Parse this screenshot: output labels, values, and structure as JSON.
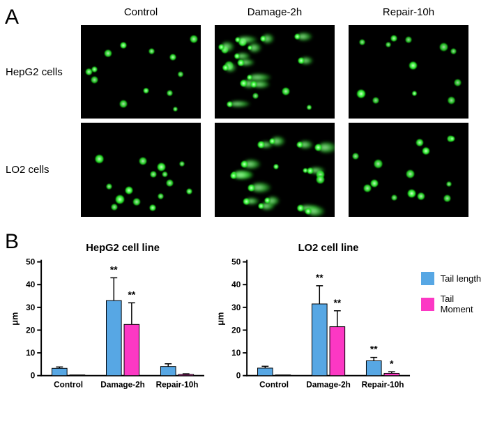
{
  "panel_a": {
    "label": "A",
    "columns": [
      "Control",
      "Damage-2h",
      "Repair-10h"
    ],
    "rows": [
      {
        "label": "HepG2 cells",
        "images": [
          {
            "name": "hepg2-control",
            "type": "round",
            "cell_count": 13
          },
          {
            "name": "hepg2-damage-2h",
            "type": "comet",
            "cell_count": 19
          },
          {
            "name": "hepg2-repair-10h",
            "type": "round",
            "cell_count": 12
          }
        ]
      },
      {
        "label": "LO2 cells",
        "images": [
          {
            "name": "lo2-control",
            "type": "round",
            "cell_count": 15
          },
          {
            "name": "lo2-damage-2h",
            "type": "comet",
            "cell_count": 18
          },
          {
            "name": "lo2-repair-10h",
            "type": "round",
            "cell_count": 14
          }
        ]
      }
    ]
  },
  "panel_b": {
    "label": "B",
    "legend": [
      {
        "label": "Tail length",
        "color": "#57a7e4"
      },
      {
        "label": "Tail Moment",
        "color": "#fc38c4"
      }
    ]
  },
  "chart_data": [
    {
      "type": "bar",
      "title": "HepG2 cell line",
      "xlabel": "",
      "ylabel": "μm",
      "ylim": [
        0,
        50
      ],
      "yticks": [
        0,
        10,
        20,
        30,
        40,
        50
      ],
      "grid": false,
      "legend_position": "right",
      "categories": [
        "Control",
        "Damage-2h",
        "Repair-10h"
      ],
      "series": [
        {
          "name": "Tail length",
          "color": "#57a7e4",
          "values": [
            3.2,
            33,
            4
          ],
          "errors": [
            0.6,
            10,
            1.2
          ],
          "annotations": [
            "",
            "**",
            ""
          ]
        },
        {
          "name": "Tail Moment",
          "color": "#fc38c4",
          "values": [
            0.3,
            22.5,
            0.5
          ],
          "errors": [
            0.1,
            9.5,
            0.3
          ],
          "annotations": [
            "",
            "**",
            ""
          ]
        }
      ]
    },
    {
      "type": "bar",
      "title": "LO2 cell line",
      "xlabel": "",
      "ylabel": "μm",
      "ylim": [
        0,
        50
      ],
      "yticks": [
        0,
        10,
        20,
        30,
        40,
        50
      ],
      "grid": false,
      "legend_position": "right",
      "categories": [
        "Control",
        "Damage-2h",
        "Repair-10h"
      ],
      "series": [
        {
          "name": "Tail length",
          "color": "#57a7e4",
          "values": [
            3.3,
            31.5,
            6.5
          ],
          "errors": [
            0.8,
            8,
            1.5
          ],
          "annotations": [
            "",
            "**",
            "**"
          ]
        },
        {
          "name": "Tail Moment",
          "color": "#fc38c4",
          "values": [
            0.3,
            21.5,
            1.0
          ],
          "errors": [
            0.1,
            7,
            0.7
          ],
          "annotations": [
            "",
            "**",
            "*"
          ]
        }
      ]
    }
  ]
}
